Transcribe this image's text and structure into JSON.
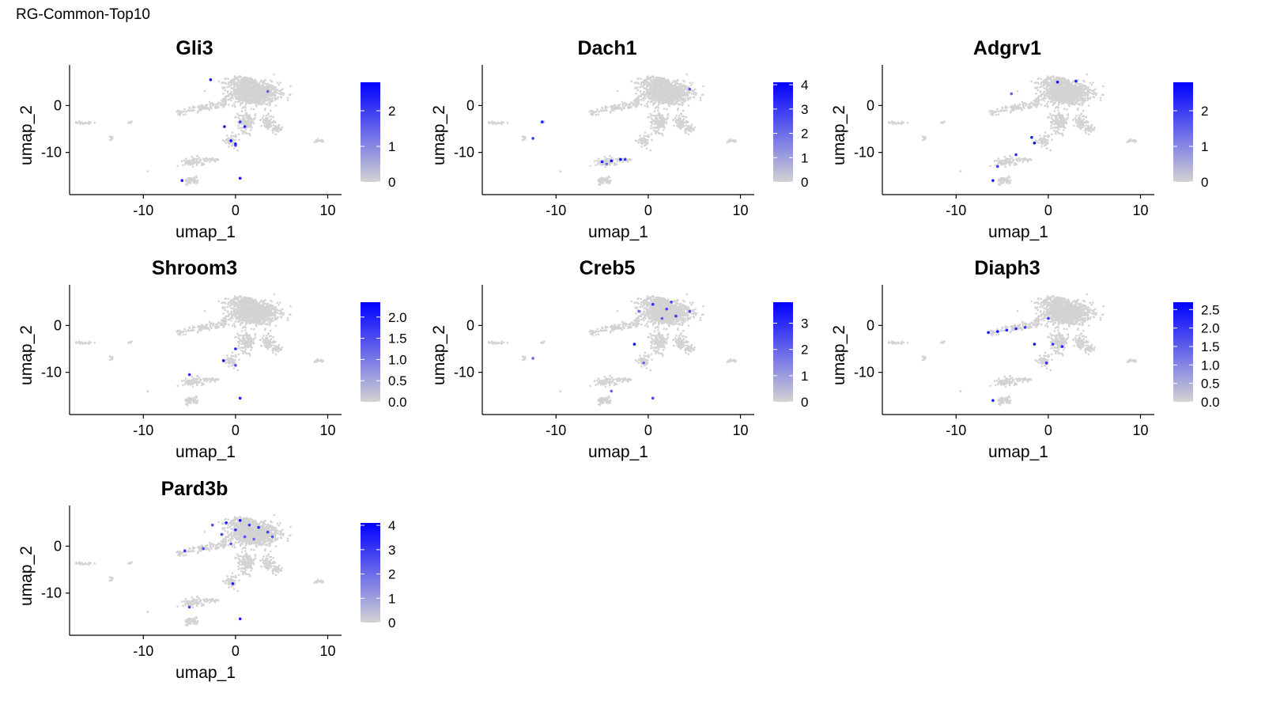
{
  "figure_title": "RG-Common-Top10",
  "colors": {
    "low": "#d3d3d3",
    "high": "#0000ff",
    "axis": "#000000"
  },
  "chart_data": [
    {
      "type": "scatter",
      "title": "Gli3",
      "xlabel": "umap_1",
      "ylabel": "umap_2",
      "xlim": [
        -18,
        11.5
      ],
      "ylim": [
        -19,
        8
      ],
      "xticks": [
        -10,
        0,
        10
      ],
      "yticks": [
        0,
        -10
      ],
      "color_range": [
        0,
        2.8
      ],
      "legend_ticks": [
        "2",
        "1",
        "0"
      ],
      "legend_tick_values": [
        2,
        1,
        0
      ],
      "highlights": [
        [
          -1.2,
          -4.5,
          2.5
        ],
        [
          0.5,
          -3.5,
          2.0
        ],
        [
          1.0,
          -4.5,
          2.2
        ],
        [
          -0.5,
          -7.5,
          2.6
        ],
        [
          0.0,
          -8.2,
          2.7
        ],
        [
          -2.7,
          5.5,
          2.6
        ],
        [
          3.5,
          3.0,
          1.5
        ],
        [
          -5.8,
          -16,
          2.5
        ],
        [
          0.5,
          -15.5,
          2.5
        ],
        [
          0.0,
          -8.5,
          2.0
        ]
      ]
    },
    {
      "type": "scatter",
      "title": "Dach1",
      "xlabel": "umap_1",
      "ylabel": "umap_2",
      "xlim": [
        -18,
        11.5
      ],
      "ylim": [
        -19,
        8
      ],
      "xticks": [
        -10,
        0,
        10
      ],
      "yticks": [
        0,
        -10
      ],
      "color_range": [
        0,
        4.1
      ],
      "legend_ticks": [
        "4",
        "3",
        "2",
        "1",
        "0"
      ],
      "legend_tick_values": [
        4,
        3,
        2,
        1,
        0
      ],
      "highlights": [
        [
          -5.0,
          -12.0,
          3.5
        ],
        [
          -4.0,
          -11.8,
          3.8
        ],
        [
          -3.0,
          -11.5,
          3.9
        ],
        [
          -2.5,
          -11.5,
          3.0
        ],
        [
          -11.5,
          -3.5,
          3.5
        ],
        [
          -12.5,
          -7.0,
          3.0
        ],
        [
          4.5,
          3.5,
          2.5
        ],
        [
          -4.5,
          -12.5,
          2.0
        ]
      ]
    },
    {
      "type": "scatter",
      "title": "Adgrv1",
      "xlabel": "umap_1",
      "ylabel": "umap_2",
      "xlim": [
        -18,
        11.5
      ],
      "ylim": [
        -19,
        8
      ],
      "xticks": [
        -10,
        0,
        10
      ],
      "yticks": [
        0,
        -10
      ],
      "color_range": [
        0,
        2.8
      ],
      "legend_ticks": [
        "2",
        "1",
        "0"
      ],
      "legend_tick_values": [
        2,
        1,
        0
      ],
      "highlights": [
        [
          -1.5,
          -8.0,
          2.7
        ],
        [
          -1.8,
          -6.8,
          2.4
        ],
        [
          -6.0,
          -16.0,
          2.5
        ],
        [
          -5.5,
          -13.0,
          2.0
        ],
        [
          1.0,
          5.0,
          2.5
        ],
        [
          3.0,
          5.2,
          2.3
        ],
        [
          -4.0,
          2.5,
          1.5
        ],
        [
          -3.5,
          -10.5,
          2.2
        ]
      ]
    },
    {
      "type": "scatter",
      "title": "Shroom3",
      "xlabel": "umap_1",
      "ylabel": "umap_2",
      "xlim": [
        -18,
        11.5
      ],
      "ylim": [
        -19,
        8
      ],
      "xticks": [
        -10,
        0,
        10
      ],
      "yticks": [
        0,
        -10
      ],
      "color_range": [
        0,
        2.35
      ],
      "legend_ticks": [
        "2.0",
        "1.5",
        "1.0",
        "0.5",
        "0.0"
      ],
      "legend_tick_values": [
        2,
        1.5,
        1,
        0.5,
        0
      ],
      "highlights": [
        [
          -1.3,
          -7.5,
          2.3
        ],
        [
          0.0,
          -5.0,
          2.0
        ],
        [
          0.5,
          -15.5,
          2.0
        ],
        [
          -5.0,
          -10.5,
          1.8
        ],
        [
          0.0,
          -8.5,
          1.5
        ]
      ]
    },
    {
      "type": "scatter",
      "title": "Creb5",
      "xlabel": "umap_1",
      "ylabel": "umap_2",
      "xlim": [
        -18,
        11.5
      ],
      "ylim": [
        -19,
        8
      ],
      "xticks": [
        -10,
        0,
        10
      ],
      "yticks": [
        0,
        -10
      ],
      "color_range": [
        0,
        3.8
      ],
      "legend_ticks": [
        "3",
        "2",
        "1",
        "0"
      ],
      "legend_tick_values": [
        3,
        2,
        1,
        0
      ],
      "highlights": [
        [
          -1.5,
          -4.0,
          3.6
        ],
        [
          0.5,
          4.5,
          3.0
        ],
        [
          2.0,
          3.5,
          2.5
        ],
        [
          3.0,
          2.0,
          2.8
        ],
        [
          1.5,
          1.5,
          2.2
        ],
        [
          -0.5,
          -8.0,
          2.0
        ],
        [
          0.5,
          -15.5,
          2.5
        ],
        [
          -4.0,
          -14.0,
          2.0
        ],
        [
          4.5,
          3.0,
          2.4
        ],
        [
          -1.0,
          3.0,
          1.8
        ],
        [
          -12.5,
          -7.0,
          2.0
        ],
        [
          2.5,
          5.0,
          2.6
        ]
      ]
    },
    {
      "type": "scatter",
      "title": "Diaph3",
      "xlabel": "umap_1",
      "ylabel": "umap_2",
      "xlim": [
        -18,
        11.5
      ],
      "ylim": [
        -19,
        8
      ],
      "xticks": [
        -10,
        0,
        10
      ],
      "yticks": [
        0,
        -10
      ],
      "color_range": [
        0,
        2.7
      ],
      "legend_ticks": [
        "2.5",
        "2.0",
        "1.5",
        "1.0",
        "0.5",
        "0.0"
      ],
      "legend_tick_values": [
        2.5,
        2,
        1.5,
        1,
        0.5,
        0
      ],
      "highlights": [
        [
          -6.5,
          -1.5,
          2.5
        ],
        [
          -5.5,
          -1.3,
          2.4
        ],
        [
          -4.5,
          -1.0,
          2.3
        ],
        [
          -3.5,
          -0.7,
          2.2
        ],
        [
          -2.5,
          -0.4,
          2.0
        ],
        [
          -1.5,
          -4.0,
          2.5
        ],
        [
          0.5,
          -4.0,
          2.0
        ],
        [
          1.5,
          -4.5,
          2.2
        ],
        [
          -6.0,
          -16.0,
          2.3
        ],
        [
          0.0,
          1.5,
          2.0
        ],
        [
          -0.2,
          -8.0,
          2.1
        ]
      ]
    },
    {
      "type": "scatter",
      "title": "Pard3b",
      "xlabel": "umap_1",
      "ylabel": "umap_2",
      "xlim": [
        -18,
        11.5
      ],
      "ylim": [
        -19,
        8
      ],
      "xticks": [
        -10,
        0,
        10
      ],
      "yticks": [
        0,
        -10
      ],
      "color_range": [
        0,
        4.1
      ],
      "legend_ticks": [
        "4",
        "3",
        "2",
        "1",
        "0"
      ],
      "legend_tick_values": [
        4,
        3,
        2,
        1,
        0
      ],
      "highlights": [
        [
          -1.0,
          5.0,
          3.5
        ],
        [
          0.5,
          5.5,
          3.8
        ],
        [
          1.5,
          4.5,
          3.0
        ],
        [
          2.5,
          4.0,
          3.4
        ],
        [
          3.5,
          3.0,
          2.8
        ],
        [
          0.0,
          3.5,
          3.2
        ],
        [
          -1.5,
          2.5,
          2.8
        ],
        [
          1.0,
          2.0,
          2.5
        ],
        [
          2.0,
          1.5,
          2.2
        ],
        [
          -2.5,
          4.5,
          2.6
        ],
        [
          -5.5,
          -1.0,
          3.0
        ],
        [
          -3.5,
          -0.5,
          2.5
        ],
        [
          -0.3,
          -8.0,
          3.6
        ],
        [
          0.5,
          -15.5,
          3.5
        ],
        [
          -5.0,
          -13.0,
          2.8
        ],
        [
          4.0,
          2.0,
          2.4
        ],
        [
          -0.5,
          0.5,
          2.5
        ]
      ]
    }
  ]
}
